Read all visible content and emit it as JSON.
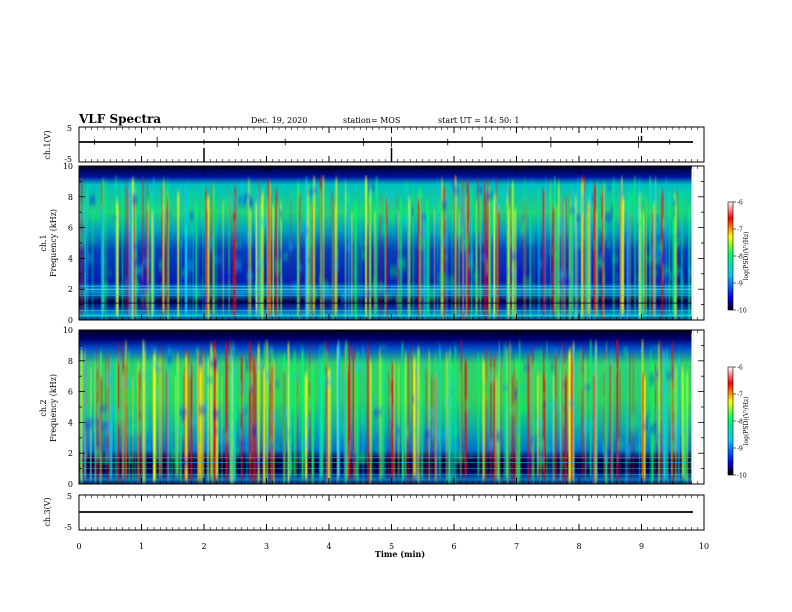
{
  "header": {
    "title": "VLF Spectra",
    "date": "Dec. 19, 2020",
    "station": "station= MOS",
    "start": "start  UT =   14: 50: 1"
  },
  "chart_data": [
    {
      "type": "line",
      "title": "",
      "ylabel": "ch.1(V)",
      "ylim": [
        -5,
        5
      ],
      "ytick_labels": [
        "5",
        "-5"
      ],
      "x": [
        0,
        9.8
      ],
      "series": [
        {
          "values": [
            0,
            0
          ]
        }
      ],
      "grid": false
    },
    {
      "type": "heatmap",
      "ylabel_line1": "ch.1",
      "ylabel_line2": "Frequency (kHz)",
      "ylim": [
        0,
        10
      ],
      "ytick_labels": [
        "0",
        "2",
        "4",
        "6",
        "8",
        "10"
      ],
      "xlim": [
        0,
        10
      ],
      "data_end_min": 9.8,
      "colorbar": {
        "label": "log(PSD)(V²/Hz)",
        "range": [
          -10,
          -6
        ],
        "tick_labels": [
          "-6",
          "-7",
          "-8",
          "-9",
          "-10"
        ],
        "colors": [
          "#000000",
          "#0000ff",
          "#00c8ff",
          "#00ff60",
          "#ffff00",
          "#ff0000",
          "#ffffff"
        ]
      }
    },
    {
      "type": "heatmap",
      "ylabel_line1": "ch.2",
      "ylabel_line2": "Frequency (kHz)",
      "ylim": [
        0,
        10
      ],
      "ytick_labels": [
        "0",
        "2",
        "4",
        "6",
        "8",
        "10"
      ],
      "xlim": [
        0,
        10
      ],
      "data_end_min": 9.8,
      "colorbar": {
        "label": "log(PSD)(V²/Hz)",
        "range": [
          -10,
          -6
        ],
        "tick_labels": [
          "-6",
          "-7",
          "-8",
          "-9",
          "-10"
        ],
        "colors": [
          "#000000",
          "#0000ff",
          "#00c8ff",
          "#00ff60",
          "#ffff00",
          "#ff0000",
          "#ffffff"
        ]
      }
    },
    {
      "type": "line",
      "title": "",
      "ylabel": "ch.3(V)",
      "ylim": [
        -5,
        5
      ],
      "ytick_labels": [
        "5",
        "-5"
      ],
      "x": [
        0,
        9.8
      ],
      "series": [
        {
          "values": [
            0,
            0
          ]
        }
      ],
      "grid": false
    }
  ],
  "x_axis": {
    "label": "Time  (min)",
    "tick_labels": [
      "0",
      "1",
      "2",
      "3",
      "4",
      "5",
      "6",
      "7",
      "8",
      "9",
      "10"
    ],
    "range": [
      0,
      10
    ]
  }
}
